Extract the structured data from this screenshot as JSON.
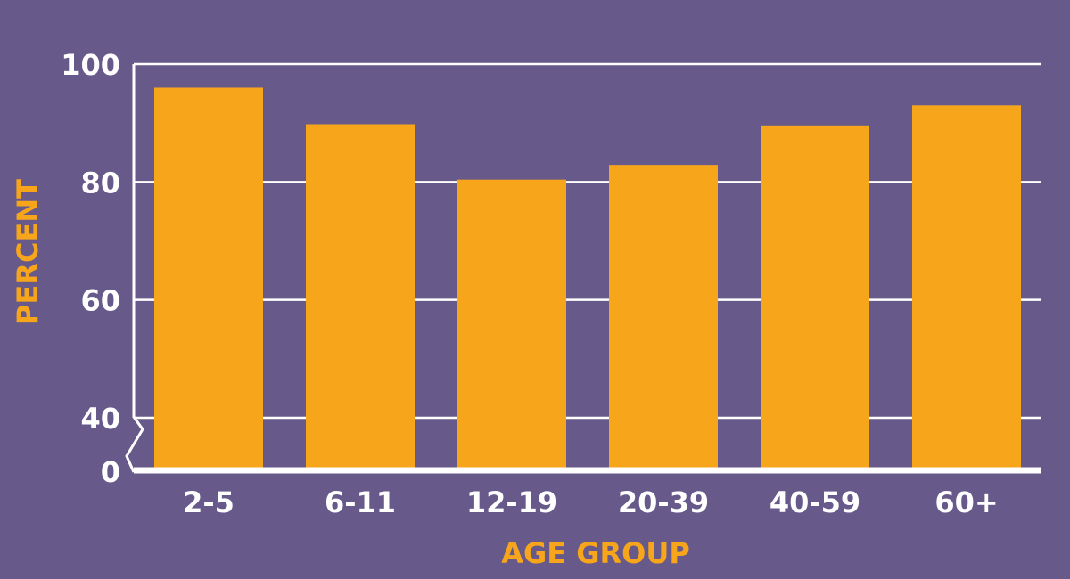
{
  "colors": {
    "background": "#675a8a",
    "bar": "#f7a61b",
    "axis": "#ffffff",
    "label": "#ffffff",
    "axis_title": "#f7a61b"
  },
  "chart_data": {
    "type": "bar",
    "categories": [
      "2-5",
      "6-11",
      "12-19",
      "20-39",
      "40-59",
      "60+"
    ],
    "values": [
      96,
      89.8,
      80.4,
      82.9,
      89.6,
      93
    ],
    "title": "",
    "xlabel": "AGE GROUP",
    "ylabel": "PERCENT",
    "ylim": [
      0,
      100
    ],
    "axis_break": true,
    "yticks": [
      {
        "value": 100,
        "label": "100"
      },
      {
        "value": 80,
        "label": "80"
      },
      {
        "value": 60,
        "label": "60"
      },
      {
        "value": 40,
        "label": "40"
      },
      {
        "value": 0,
        "label": "0"
      }
    ],
    "grid": true
  }
}
